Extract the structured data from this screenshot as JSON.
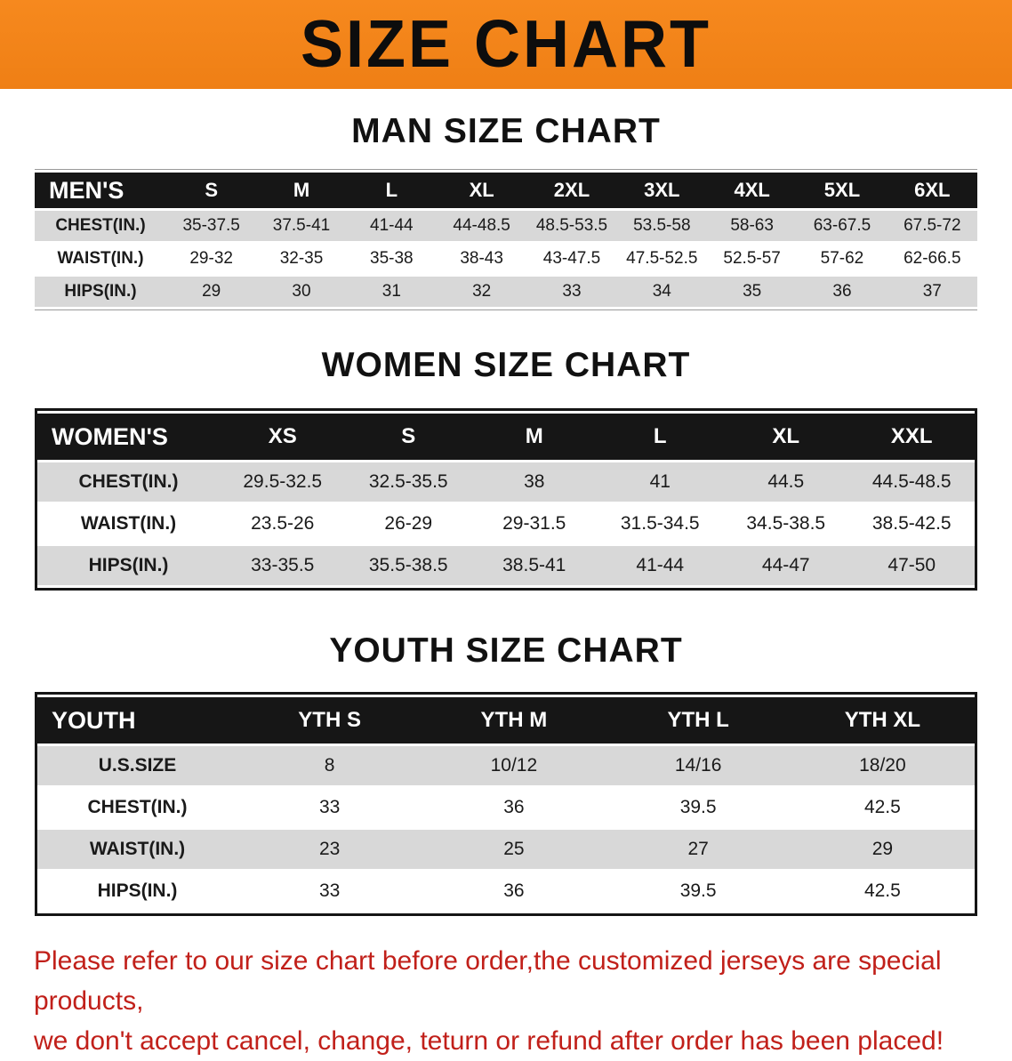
{
  "banner": {
    "title": "SIZE CHART"
  },
  "men": {
    "heading": "MAN SIZE CHART",
    "table": {
      "header": [
        "MEN'S",
        "S",
        "M",
        "L",
        "XL",
        "2XL",
        "3XL",
        "4XL",
        "5XL",
        "6XL"
      ],
      "rows": [
        [
          "CHEST(IN.)",
          "35-37.5",
          "37.5-41",
          "41-44",
          "44-48.5",
          "48.5-53.5",
          "53.5-58",
          "58-63",
          "63-67.5",
          "67.5-72"
        ],
        [
          "WAIST(IN.)",
          "29-32",
          "32-35",
          "35-38",
          "38-43",
          "43-47.5",
          "47.5-52.5",
          "52.5-57",
          "57-62",
          "62-66.5"
        ],
        [
          "HIPS(IN.)",
          "29",
          "30",
          "31",
          "32",
          "33",
          "34",
          "35",
          "36",
          "37"
        ]
      ]
    }
  },
  "women": {
    "heading": "WOMEN SIZE CHART",
    "table": {
      "header": [
        "WOMEN'S",
        "XS",
        "S",
        "M",
        "L",
        "XL",
        "XXL"
      ],
      "rows": [
        [
          "CHEST(IN.)",
          "29.5-32.5",
          "32.5-35.5",
          "38",
          "41",
          "44.5",
          "44.5-48.5"
        ],
        [
          "WAIST(IN.)",
          "23.5-26",
          "26-29",
          "29-31.5",
          "31.5-34.5",
          "34.5-38.5",
          "38.5-42.5"
        ],
        [
          "HIPS(IN.)",
          "33-35.5",
          "35.5-38.5",
          "38.5-41",
          "41-44",
          "44-47",
          "47-50"
        ]
      ]
    }
  },
  "youth": {
    "heading": "YOUTH SIZE CHART",
    "table": {
      "header": [
        "YOUTH",
        "YTH S",
        "YTH M",
        "YTH L",
        "YTH XL"
      ],
      "rows": [
        [
          "U.S.SIZE",
          "8",
          "10/12",
          "14/16",
          "18/20"
        ],
        [
          "CHEST(IN.)",
          "33",
          "36",
          "39.5",
          "42.5"
        ],
        [
          "WAIST(IN.)",
          "23",
          "25",
          "27",
          "29"
        ],
        [
          "HIPS(IN.)",
          "33",
          "36",
          "39.5",
          "42.5"
        ]
      ]
    }
  },
  "disclaimer": {
    "line1": "Please refer to our size chart before order,the customized jerseys are special products,",
    "line2": "we don't accept cancel, change, teturn or refund after order has been placed!"
  },
  "colors": {
    "banner_orange": "#f6891e",
    "banner_orange_dark": "#ef7f15",
    "table_header_black": "#161616",
    "row_gray": "#d8d8d8",
    "disclaimer_red": "#c1201a"
  }
}
